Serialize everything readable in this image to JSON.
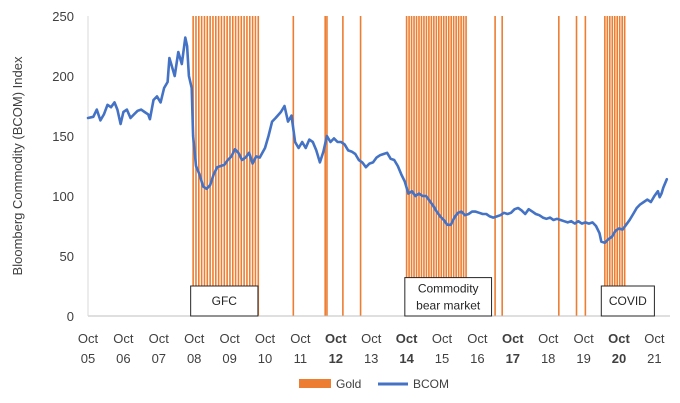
{
  "chart_data": {
    "type": "line",
    "ylabel": "Bloomberg Commodity (BCOM) Index",
    "ylim": [
      0,
      250
    ],
    "yticks": [
      0,
      50,
      100,
      150,
      200,
      250
    ],
    "xlim": [
      2005.75,
      2021.5
    ],
    "x_ticks": [
      {
        "month": "Oct",
        "year": "05",
        "x": 2005.75,
        "bold": false
      },
      {
        "month": "Oct",
        "year": "06",
        "x": 2006.75,
        "bold": false
      },
      {
        "month": "Oct",
        "year": "07",
        "x": 2007.75,
        "bold": false
      },
      {
        "month": "Oct",
        "year": "08",
        "x": 2008.75,
        "bold": false
      },
      {
        "month": "Oct",
        "year": "09",
        "x": 2009.75,
        "bold": false
      },
      {
        "month": "Oct",
        "year": "10",
        "x": 2010.75,
        "bold": false
      },
      {
        "month": "Oct",
        "year": "11",
        "x": 2011.75,
        "bold": false
      },
      {
        "month": "Oct",
        "year": "12",
        "x": 2012.75,
        "bold": true
      },
      {
        "month": "Oct",
        "year": "13",
        "x": 2013.75,
        "bold": false
      },
      {
        "month": "Oct",
        "year": "14",
        "x": 2014.75,
        "bold": true
      },
      {
        "month": "Oct",
        "year": "15",
        "x": 2015.75,
        "bold": false
      },
      {
        "month": "Oct",
        "year": "16",
        "x": 2016.75,
        "bold": false
      },
      {
        "month": "Oct",
        "year": "17",
        "x": 2017.75,
        "bold": true
      },
      {
        "month": "Oct",
        "year": "18",
        "x": 2018.75,
        "bold": false
      },
      {
        "month": "Oct",
        "year": "19",
        "x": 2019.75,
        "bold": false
      },
      {
        "month": "Oct",
        "year": "20",
        "x": 2020.75,
        "bold": true
      },
      {
        "month": "Oct",
        "year": "21",
        "x": 2021.75,
        "bold": false
      }
    ],
    "series": [
      {
        "name": "BCOM",
        "color": "#4472C4",
        "points": [
          [
            2005.75,
            165
          ],
          [
            2005.9,
            166
          ],
          [
            2006.0,
            172
          ],
          [
            2006.1,
            163
          ],
          [
            2006.2,
            168
          ],
          [
            2006.3,
            176
          ],
          [
            2006.4,
            174
          ],
          [
            2006.5,
            178
          ],
          [
            2006.58,
            172
          ],
          [
            2006.67,
            160
          ],
          [
            2006.75,
            170
          ],
          [
            2006.85,
            172
          ],
          [
            2006.95,
            165
          ],
          [
            2007.05,
            168
          ],
          [
            2007.15,
            171
          ],
          [
            2007.25,
            172
          ],
          [
            2007.35,
            170
          ],
          [
            2007.45,
            168
          ],
          [
            2007.5,
            164
          ],
          [
            2007.6,
            180
          ],
          [
            2007.7,
            183
          ],
          [
            2007.8,
            178
          ],
          [
            2007.9,
            190
          ],
          [
            2008.0,
            195
          ],
          [
            2008.05,
            215
          ],
          [
            2008.1,
            210
          ],
          [
            2008.2,
            200
          ],
          [
            2008.3,
            220
          ],
          [
            2008.4,
            210
          ],
          [
            2008.5,
            232
          ],
          [
            2008.55,
            225
          ],
          [
            2008.6,
            200
          ],
          [
            2008.68,
            190
          ],
          [
            2008.72,
            150
          ],
          [
            2008.8,
            125
          ],
          [
            2008.9,
            118
          ],
          [
            2009.0,
            108
          ],
          [
            2009.1,
            106
          ],
          [
            2009.2,
            109
          ],
          [
            2009.3,
            118
          ],
          [
            2009.4,
            124
          ],
          [
            2009.5,
            125
          ],
          [
            2009.6,
            126
          ],
          [
            2009.7,
            130
          ],
          [
            2009.8,
            133
          ],
          [
            2009.9,
            139
          ],
          [
            2010.0,
            136
          ],
          [
            2010.1,
            130
          ],
          [
            2010.2,
            132
          ],
          [
            2010.3,
            136
          ],
          [
            2010.4,
            127
          ],
          [
            2010.5,
            133
          ],
          [
            2010.6,
            132
          ],
          [
            2010.75,
            140
          ],
          [
            2010.85,
            150
          ],
          [
            2010.95,
            162
          ],
          [
            2011.05,
            165
          ],
          [
            2011.2,
            170
          ],
          [
            2011.3,
            175
          ],
          [
            2011.4,
            162
          ],
          [
            2011.5,
            167
          ],
          [
            2011.6,
            145
          ],
          [
            2011.7,
            140
          ],
          [
            2011.8,
            145
          ],
          [
            2011.9,
            140
          ],
          [
            2012.0,
            147
          ],
          [
            2012.1,
            145
          ],
          [
            2012.2,
            138
          ],
          [
            2012.3,
            128
          ],
          [
            2012.4,
            137
          ],
          [
            2012.5,
            150
          ],
          [
            2012.6,
            145
          ],
          [
            2012.7,
            148
          ],
          [
            2012.8,
            145
          ],
          [
            2012.9,
            145
          ],
          [
            2013.0,
            143
          ],
          [
            2013.1,
            138
          ],
          [
            2013.2,
            137
          ],
          [
            2013.3,
            135
          ],
          [
            2013.4,
            130
          ],
          [
            2013.5,
            128
          ],
          [
            2013.6,
            124
          ],
          [
            2013.7,
            127
          ],
          [
            2013.8,
            128
          ],
          [
            2013.9,
            132
          ],
          [
            2014.0,
            134
          ],
          [
            2014.1,
            135
          ],
          [
            2014.2,
            136
          ],
          [
            2014.3,
            131
          ],
          [
            2014.4,
            130
          ],
          [
            2014.5,
            125
          ],
          [
            2014.6,
            118
          ],
          [
            2014.7,
            112
          ],
          [
            2014.8,
            102
          ],
          [
            2014.9,
            104
          ],
          [
            2015.0,
            100
          ],
          [
            2015.1,
            102
          ],
          [
            2015.2,
            100
          ],
          [
            2015.3,
            100
          ],
          [
            2015.4,
            96
          ],
          [
            2015.5,
            92
          ],
          [
            2015.6,
            87
          ],
          [
            2015.7,
            83
          ],
          [
            2015.8,
            80
          ],
          [
            2015.9,
            76
          ],
          [
            2016.0,
            76
          ],
          [
            2016.1,
            82
          ],
          [
            2016.2,
            86
          ],
          [
            2016.3,
            87
          ],
          [
            2016.4,
            84
          ],
          [
            2016.5,
            85
          ],
          [
            2016.6,
            87
          ],
          [
            2016.7,
            87
          ],
          [
            2016.8,
            86
          ],
          [
            2016.9,
            85
          ],
          [
            2017.0,
            85
          ],
          [
            2017.1,
            83
          ],
          [
            2017.2,
            82
          ],
          [
            2017.3,
            83
          ],
          [
            2017.4,
            84
          ],
          [
            2017.5,
            86
          ],
          [
            2017.6,
            85
          ],
          [
            2017.7,
            86
          ],
          [
            2017.8,
            89
          ],
          [
            2017.9,
            90
          ],
          [
            2018.0,
            88
          ],
          [
            2018.1,
            85
          ],
          [
            2018.2,
            89
          ],
          [
            2018.3,
            87
          ],
          [
            2018.4,
            85
          ],
          [
            2018.5,
            84
          ],
          [
            2018.6,
            82
          ],
          [
            2018.7,
            81
          ],
          [
            2018.8,
            82
          ],
          [
            2018.9,
            80
          ],
          [
            2019.0,
            81
          ],
          [
            2019.1,
            80
          ],
          [
            2019.2,
            79
          ],
          [
            2019.3,
            78
          ],
          [
            2019.4,
            79
          ],
          [
            2019.5,
            77
          ],
          [
            2019.6,
            79
          ],
          [
            2019.7,
            77
          ],
          [
            2019.8,
            78
          ],
          [
            2019.9,
            77
          ],
          [
            2020.0,
            78
          ],
          [
            2020.1,
            75
          ],
          [
            2020.2,
            69
          ],
          [
            2020.25,
            62
          ],
          [
            2020.35,
            61
          ],
          [
            2020.45,
            64
          ],
          [
            2020.55,
            66
          ],
          [
            2020.65,
            71
          ],
          [
            2020.75,
            73
          ],
          [
            2020.85,
            72
          ],
          [
            2020.95,
            76
          ],
          [
            2021.05,
            80
          ],
          [
            2021.15,
            85
          ],
          [
            2021.25,
            90
          ],
          [
            2021.35,
            93
          ],
          [
            2021.45,
            95
          ],
          [
            2021.55,
            97
          ],
          [
            2021.65,
            95
          ],
          [
            2021.75,
            100
          ],
          [
            2021.85,
            104
          ],
          [
            2021.9,
            99
          ],
          [
            2021.95,
            102
          ],
          [
            2022.0,
            107
          ],
          [
            2022.1,
            114
          ]
        ]
      },
      {
        "name": "Gold",
        "color": "#ED7D31",
        "bars_x": [
          2008.72,
          2008.8,
          2008.88,
          2008.96,
          2009.04,
          2009.12,
          2009.2,
          2009.28,
          2009.36,
          2009.44,
          2009.52,
          2009.6,
          2009.68,
          2009.76,
          2009.84,
          2009.92,
          2010.0,
          2010.08,
          2010.16,
          2010.24,
          2010.32,
          2010.4,
          2010.48,
          2010.56,
          2011.55,
          2012.45,
          2012.5,
          2012.95,
          2013.45,
          2014.75,
          2014.82,
          2014.89,
          2014.96,
          2015.03,
          2015.1,
          2015.17,
          2015.24,
          2015.31,
          2015.38,
          2015.45,
          2015.52,
          2015.59,
          2015.66,
          2015.73,
          2015.8,
          2015.87,
          2015.94,
          2016.01,
          2016.08,
          2016.15,
          2016.22,
          2016.29,
          2016.36,
          2016.43,
          2017.25,
          2017.45,
          2019.05,
          2019.55,
          2019.8,
          2020.35,
          2020.42,
          2020.49,
          2020.56,
          2020.63,
          2020.7,
          2020.77,
          2020.84,
          2020.91
        ]
      }
    ],
    "annotations": [
      {
        "label": "GFC",
        "lines": [
          "GFC"
        ],
        "x_range": [
          2008.65,
          2010.55
        ],
        "y_range": [
          25,
          0
        ]
      },
      {
        "label": "Commodity bear market",
        "lines": [
          "Commodity",
          "bear market"
        ],
        "x_range": [
          2014.7,
          2017.15
        ],
        "y_range": [
          32,
          0
        ]
      },
      {
        "label": "COVID",
        "lines": [
          "COVID"
        ],
        "x_range": [
          2020.25,
          2021.75
        ],
        "y_range": [
          25,
          0
        ]
      }
    ],
    "legend": {
      "position": "bottom",
      "items": [
        "Gold",
        "BCOM"
      ]
    }
  }
}
